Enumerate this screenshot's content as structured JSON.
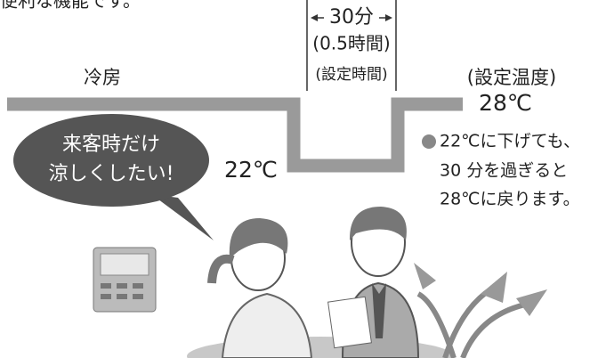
{
  "header": {
    "text": "便利な機能です。"
  },
  "timer": {
    "duration": "30分",
    "hours": "(0.5時間)",
    "caption": "(設定時間)"
  },
  "mode": "冷房",
  "setting": {
    "caption": "(設定温度)",
    "temperature": "28℃"
  },
  "lowered": "22℃",
  "speech": [
    "来客時だけ",
    "涼しくしたい!"
  ],
  "note": [
    "22℃に下げても、",
    "30 分を過ぎると",
    "28℃に戻ります。"
  ]
}
